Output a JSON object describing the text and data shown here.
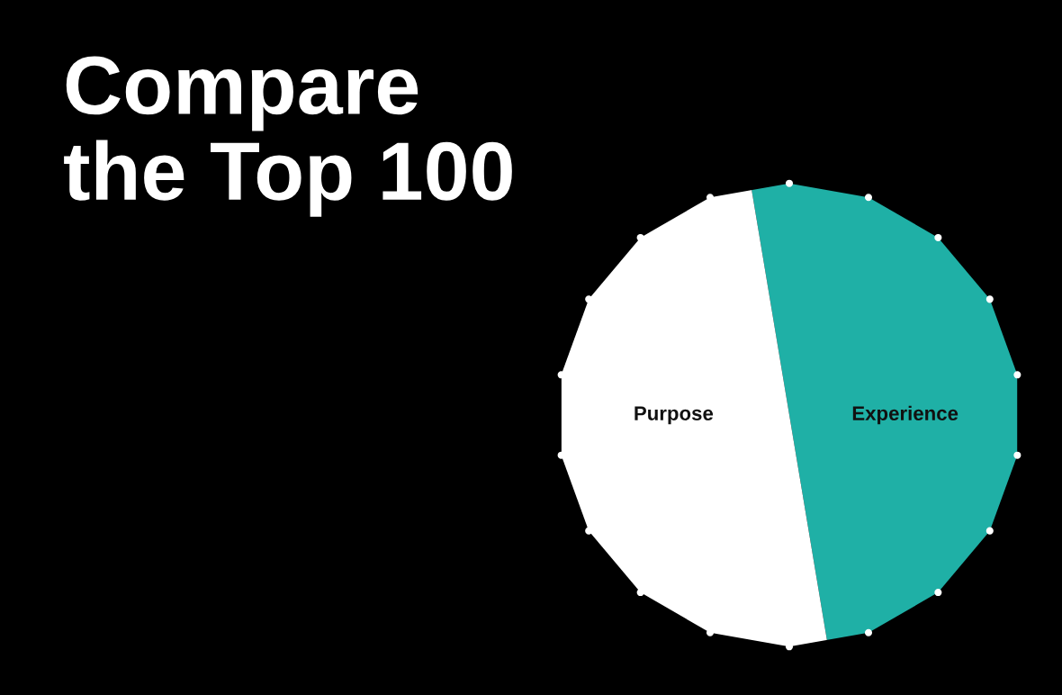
{
  "chart_data": {
    "type": "pie",
    "title": "Compare\nthe Top 100",
    "categories": [
      "Experience",
      "Purpose"
    ],
    "values": [
      50,
      50
    ],
    "colors": [
      "#1fb0a6",
      "#ffffff"
    ]
  }
}
